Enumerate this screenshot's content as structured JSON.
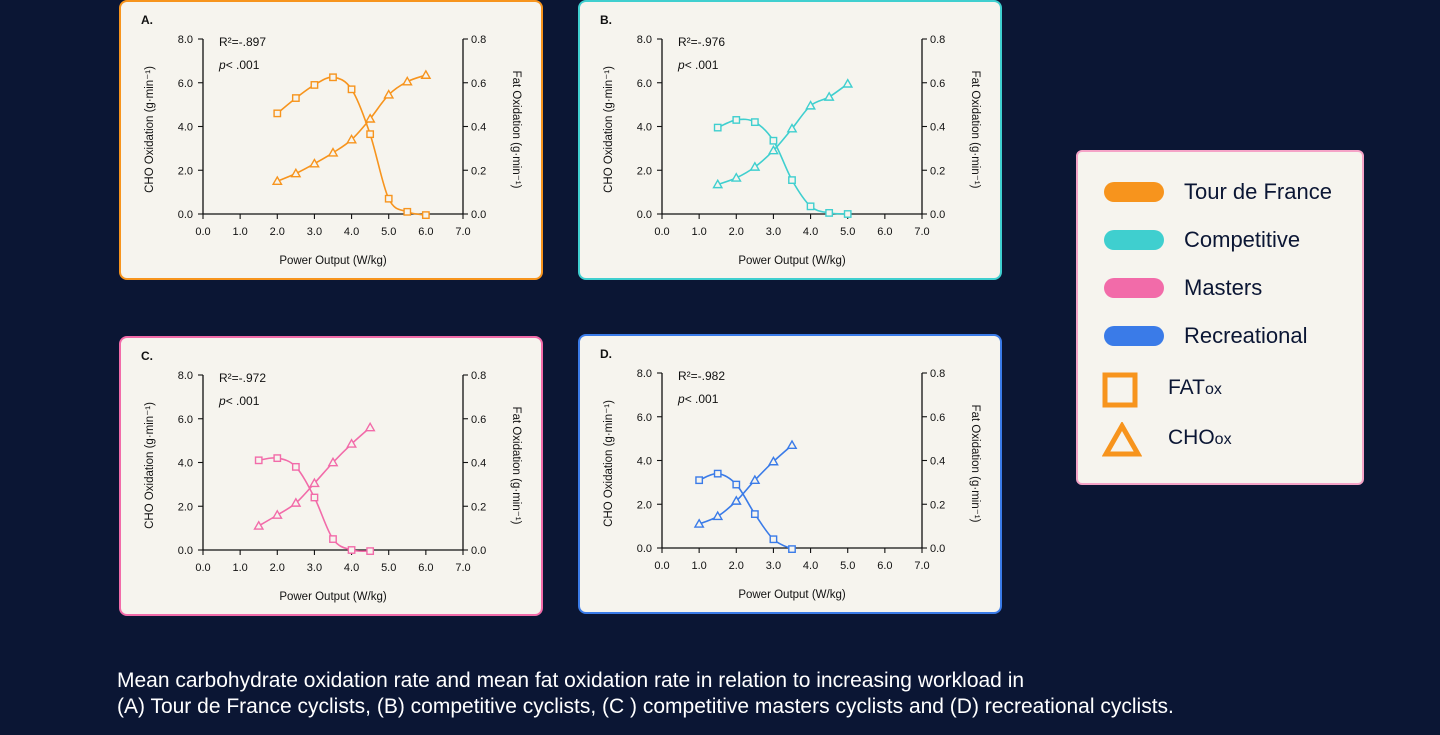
{
  "chart_data": [
    {
      "type": "line",
      "panel_label": "A.",
      "group": "Tour de France",
      "color": "#f7941d",
      "r2": "R²=-.897",
      "p_prefix": "p",
      "p_suffix": "< .001",
      "xlabel": "Power Output (W/kg)",
      "ylabel_left": "CHO Oxidation (g·min⁻¹)",
      "ylabel_right": "Fat Oxidation (g·min⁻¹)",
      "xlim": [
        0,
        7
      ],
      "ylim_left": [
        0,
        8
      ],
      "ylim_right": [
        0,
        0.8
      ],
      "xticks": [
        "0.0",
        "1.0",
        "2.0",
        "3.0",
        "4.0",
        "5.0",
        "6.0",
        "7.0"
      ],
      "yticks_left": [
        "0.0",
        "2.0",
        "4.0",
        "6.0",
        "8.0"
      ],
      "yticks_right": [
        "0.0",
        "0.2",
        "0.4",
        "0.6",
        "0.8"
      ],
      "series": [
        {
          "name": "FATox",
          "marker": "square",
          "axis": "right",
          "x": [
            2.0,
            2.5,
            3.0,
            3.5,
            4.0,
            4.5,
            5.0,
            5.5,
            6.0
          ],
          "values": [
            0.46,
            0.53,
            0.59,
            0.625,
            0.57,
            0.365,
            0.07,
            0.01,
            -0.005
          ]
        },
        {
          "name": "CHOox",
          "marker": "triangle",
          "axis": "left",
          "x": [
            2.0,
            2.5,
            3.0,
            3.5,
            4.0,
            4.5,
            5.0,
            5.5,
            6.0
          ],
          "values": [
            1.5,
            1.85,
            2.3,
            2.8,
            3.4,
            4.35,
            5.45,
            6.05,
            6.35
          ]
        }
      ]
    },
    {
      "type": "line",
      "panel_label": "B.",
      "group": "Competitive",
      "color": "#3fcfcf",
      "r2": "R²=-.976",
      "p_prefix": "p",
      "p_suffix": "< .001",
      "xlabel": "Power Output (W/kg)",
      "ylabel_left": "CHO Oxidation (g·min⁻¹)",
      "ylabel_right": "Fat Oxidation (g·min⁻¹)",
      "xlim": [
        0,
        7
      ],
      "ylim_left": [
        0,
        8
      ],
      "ylim_right": [
        0,
        0.8
      ],
      "xticks": [
        "0.0",
        "1.0",
        "2.0",
        "3.0",
        "4.0",
        "5.0",
        "6.0",
        "7.0"
      ],
      "yticks_left": [
        "0.0",
        "2.0",
        "4.0",
        "6.0",
        "8.0"
      ],
      "yticks_right": [
        "0.0",
        "0.2",
        "0.4",
        "0.6",
        "0.8"
      ],
      "series": [
        {
          "name": "FATox",
          "marker": "square",
          "axis": "right",
          "x": [
            1.5,
            2.0,
            2.5,
            3.0,
            3.5,
            4.0,
            4.5,
            5.0
          ],
          "values": [
            0.395,
            0.43,
            0.42,
            0.335,
            0.155,
            0.035,
            0.005,
            0.0
          ]
        },
        {
          "name": "CHOox",
          "marker": "triangle",
          "axis": "left",
          "x": [
            1.5,
            2.0,
            2.5,
            3.0,
            3.5,
            4.0,
            4.5,
            5.0
          ],
          "values": [
            1.35,
            1.65,
            2.15,
            2.9,
            3.9,
            4.95,
            5.35,
            5.95
          ]
        }
      ]
    },
    {
      "type": "line",
      "panel_label": "C.",
      "group": "Masters",
      "color": "#f26ba9",
      "r2": "R²=-.972",
      "p_prefix": "p",
      "p_suffix": "< .001",
      "xlabel": "Power Output (W/kg)",
      "ylabel_left": "CHO Oxidation (g·min⁻¹)",
      "ylabel_right": "Fat Oxidation (g·min⁻¹)",
      "xlim": [
        0,
        7
      ],
      "ylim_left": [
        0,
        8
      ],
      "ylim_right": [
        0,
        0.8
      ],
      "xticks": [
        "0.0",
        "1.0",
        "2.0",
        "3.0",
        "4.0",
        "5.0",
        "6.0",
        "7.0"
      ],
      "yticks_left": [
        "0.0",
        "2.0",
        "4.0",
        "6.0",
        "8.0"
      ],
      "yticks_right": [
        "0.0",
        "0.2",
        "0.4",
        "0.6",
        "0.8"
      ],
      "series": [
        {
          "name": "FATox",
          "marker": "square",
          "axis": "right",
          "x": [
            1.5,
            2.0,
            2.5,
            3.0,
            3.5,
            4.0,
            4.5
          ],
          "values": [
            0.41,
            0.42,
            0.38,
            0.24,
            0.05,
            0.0,
            -0.005
          ]
        },
        {
          "name": "CHOox",
          "marker": "triangle",
          "axis": "left",
          "x": [
            1.5,
            2.0,
            2.5,
            3.0,
            3.5,
            4.0,
            4.5
          ],
          "values": [
            1.1,
            1.6,
            2.15,
            3.05,
            4.0,
            4.85,
            5.6
          ]
        }
      ]
    },
    {
      "type": "line",
      "panel_label": "D.",
      "group": "Recreational",
      "color": "#3a7be8",
      "r2": "R²=-.982",
      "p_prefix": "p",
      "p_suffix": "< .001",
      "xlabel": "Power Output (W/kg)",
      "ylabel_left": "CHO Oxidation (g·min⁻¹)",
      "ylabel_right": "Fat Oxidation (g·min⁻¹)",
      "xlim": [
        0,
        7
      ],
      "ylim_left": [
        0,
        8
      ],
      "ylim_right": [
        0,
        0.8
      ],
      "xticks": [
        "0.0",
        "1.0",
        "2.0",
        "3.0",
        "4.0",
        "5.0",
        "6.0",
        "7.0"
      ],
      "yticks_left": [
        "0.0",
        "2.0",
        "4.0",
        "6.0",
        "8.0"
      ],
      "yticks_right": [
        "0.0",
        "0.2",
        "0.4",
        "0.6",
        "0.8"
      ],
      "series": [
        {
          "name": "FATox",
          "marker": "square",
          "axis": "right",
          "x": [
            1.0,
            1.5,
            2.0,
            2.5,
            3.0,
            3.5
          ],
          "values": [
            0.31,
            0.34,
            0.29,
            0.155,
            0.04,
            -0.005
          ]
        },
        {
          "name": "CHOox",
          "marker": "triangle",
          "axis": "left",
          "x": [
            1.0,
            1.5,
            2.0,
            2.5,
            3.0,
            3.5
          ],
          "values": [
            1.1,
            1.45,
            2.15,
            3.1,
            3.95,
            4.7
          ]
        }
      ]
    }
  ],
  "legend": {
    "groups": [
      {
        "label": "Tour de France",
        "color": "#f7941d"
      },
      {
        "label": "Competitive",
        "color": "#3fcfcf"
      },
      {
        "label": "Masters",
        "color": "#f26ba9"
      },
      {
        "label": "Recreational",
        "color": "#3a7be8"
      }
    ],
    "fat_main": "FAT",
    "fat_sub": "ox",
    "cho_main": "CHO",
    "cho_sub": "ox",
    "symbol_color": "#f7941d"
  },
  "caption": {
    "line1": "Mean carbohydrate oxidation rate and mean fat oxidation rate in relation to increasing workload in",
    "line2": "(A) Tour de France cyclists, (B) competitive cyclists, (C ) competitive masters cyclists and (D) recreational cyclists."
  }
}
